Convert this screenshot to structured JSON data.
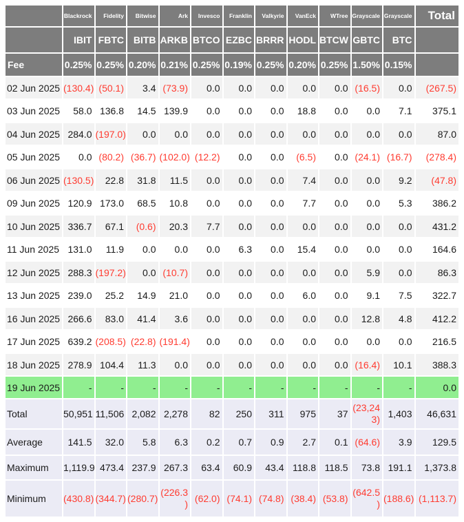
{
  "table": {
    "issuers": [
      "Blackrock",
      "Fidelity",
      "Bitwise",
      "Ark",
      "Invesco",
      "Franklin",
      "Valkyrie",
      "VanEck",
      "WTree",
      "Grayscale",
      "Grayscale"
    ],
    "total_label": "Total",
    "tickers": [
      "IBIT",
      "FBTC",
      "BITB",
      "ARKB",
      "BTCO",
      "EZBC",
      "BRRR",
      "HODL",
      "BTCW",
      "GBTC",
      "BTC"
    ],
    "fee_label": "Fee",
    "fees": [
      "0.25%",
      "0.25%",
      "0.20%",
      "0.21%",
      "0.25%",
      "0.19%",
      "0.25%",
      "0.20%",
      "0.25%",
      "1.50%",
      "0.15%"
    ],
    "date_rows": [
      {
        "label": "02 Jun 2025",
        "values": [
          "(130.4)",
          "(50.1)",
          "3.4",
          "(73.9)",
          "0.0",
          "0.0",
          "0.0",
          "0.0",
          "0.0",
          "(16.5)",
          "0.0",
          "(267.5)"
        ]
      },
      {
        "label": "03 Jun 2025",
        "values": [
          "58.0",
          "136.8",
          "14.5",
          "139.9",
          "0.0",
          "0.0",
          "0.0",
          "18.8",
          "0.0",
          "0.0",
          "7.1",
          "375.1"
        ]
      },
      {
        "label": "04 Jun 2025",
        "values": [
          "284.0",
          "(197.0)",
          "0.0",
          "0.0",
          "0.0",
          "0.0",
          "0.0",
          "0.0",
          "0.0",
          "0.0",
          "0.0",
          "87.0"
        ]
      },
      {
        "label": "05 Jun 2025",
        "values": [
          "0.0",
          "(80.2)",
          "(36.7)",
          "(102.0)",
          "(12.2)",
          "0.0",
          "0.0",
          "(6.5)",
          "0.0",
          "(24.1)",
          "(16.7)",
          "(278.4)"
        ]
      },
      {
        "label": "06 Jun 2025",
        "values": [
          "(130.5)",
          "22.8",
          "31.8",
          "11.5",
          "0.0",
          "0.0",
          "0.0",
          "7.4",
          "0.0",
          "0.0",
          "9.2",
          "(47.8)"
        ]
      },
      {
        "label": "09 Jun 2025",
        "values": [
          "120.9",
          "173.0",
          "68.5",
          "10.8",
          "0.0",
          "0.0",
          "0.0",
          "7.7",
          "0.0",
          "0.0",
          "5.3",
          "386.2"
        ]
      },
      {
        "label": "10 Jun 2025",
        "values": [
          "336.7",
          "67.1",
          "(0.6)",
          "20.3",
          "7.7",
          "0.0",
          "0.0",
          "0.0",
          "0.0",
          "0.0",
          "0.0",
          "431.2"
        ]
      },
      {
        "label": "11 Jun 2025",
        "values": [
          "131.0",
          "11.9",
          "0.0",
          "0.0",
          "0.0",
          "6.3",
          "0.0",
          "15.4",
          "0.0",
          "0.0",
          "0.0",
          "164.6"
        ]
      },
      {
        "label": "12 Jun 2025",
        "values": [
          "288.3",
          "(197.2)",
          "0.0",
          "(10.7)",
          "0.0",
          "0.0",
          "0.0",
          "0.0",
          "0.0",
          "5.9",
          "0.0",
          "86.3"
        ]
      },
      {
        "label": "13 Jun 2025",
        "values": [
          "239.0",
          "25.2",
          "14.9",
          "21.0",
          "0.0",
          "0.0",
          "0.0",
          "6.0",
          "0.0",
          "9.1",
          "7.5",
          "322.7"
        ]
      },
      {
        "label": "16 Jun 2025",
        "values": [
          "266.6",
          "83.0",
          "41.4",
          "3.6",
          "0.0",
          "0.0",
          "0.0",
          "0.0",
          "0.0",
          "12.8",
          "4.8",
          "412.2"
        ]
      },
      {
        "label": "17 Jun 2025",
        "values": [
          "639.2",
          "(208.5)",
          "(22.8)",
          "(191.4)",
          "0.0",
          "0.0",
          "0.0",
          "0.0",
          "0.0",
          "0.0",
          "0.0",
          "216.5"
        ]
      },
      {
        "label": "18 Jun 2025",
        "values": [
          "278.9",
          "104.4",
          "11.3",
          "0.0",
          "0.0",
          "0.0",
          "0.0",
          "0.0",
          "0.0",
          "(16.4)",
          "10.1",
          "388.3"
        ]
      }
    ],
    "pending_row": {
      "label": "19 Jun 2025",
      "values": [
        "-",
        "-",
        "-",
        "-",
        "-",
        "-",
        "-",
        "-",
        "-",
        "-",
        "-",
        "0.0"
      ]
    },
    "summary_rows": [
      {
        "label": "Total",
        "values": [
          "50,951",
          "11,506",
          "2,082",
          "2,278",
          "82",
          "250",
          "311",
          "975",
          "37",
          "(23,24\n3)",
          "1,403",
          "46,631"
        ]
      },
      {
        "label": "Average",
        "values": [
          "141.5",
          "32.0",
          "5.8",
          "6.3",
          "0.2",
          "0.7",
          "0.9",
          "2.7",
          "0.1",
          "(64.6)",
          "3.9",
          "129.5"
        ]
      },
      {
        "label": "Maximum",
        "values": [
          "1,119.9",
          "473.4",
          "237.9",
          "267.3",
          "63.4",
          "60.9",
          "43.4",
          "118.8",
          "118.5",
          "73.8",
          "191.1",
          "1,373.8"
        ]
      },
      {
        "label": "Minimum",
        "values": [
          "(430.8)",
          "(344.7)",
          "(280.7)",
          "(226.3\n)",
          "(62.0)",
          "(74.1)",
          "(74.8)",
          "(38.4)",
          "(53.8)",
          "(642.5\n)",
          "(188.6)",
          "(1,113.7)"
        ]
      }
    ],
    "colors": {
      "header_bg": "#7d7d7d",
      "row_stripe": "#f2f2f2",
      "highlight_green": "#90ee90",
      "summary_bg": "#ebebf5",
      "negative_red": "#ff3b30"
    }
  }
}
